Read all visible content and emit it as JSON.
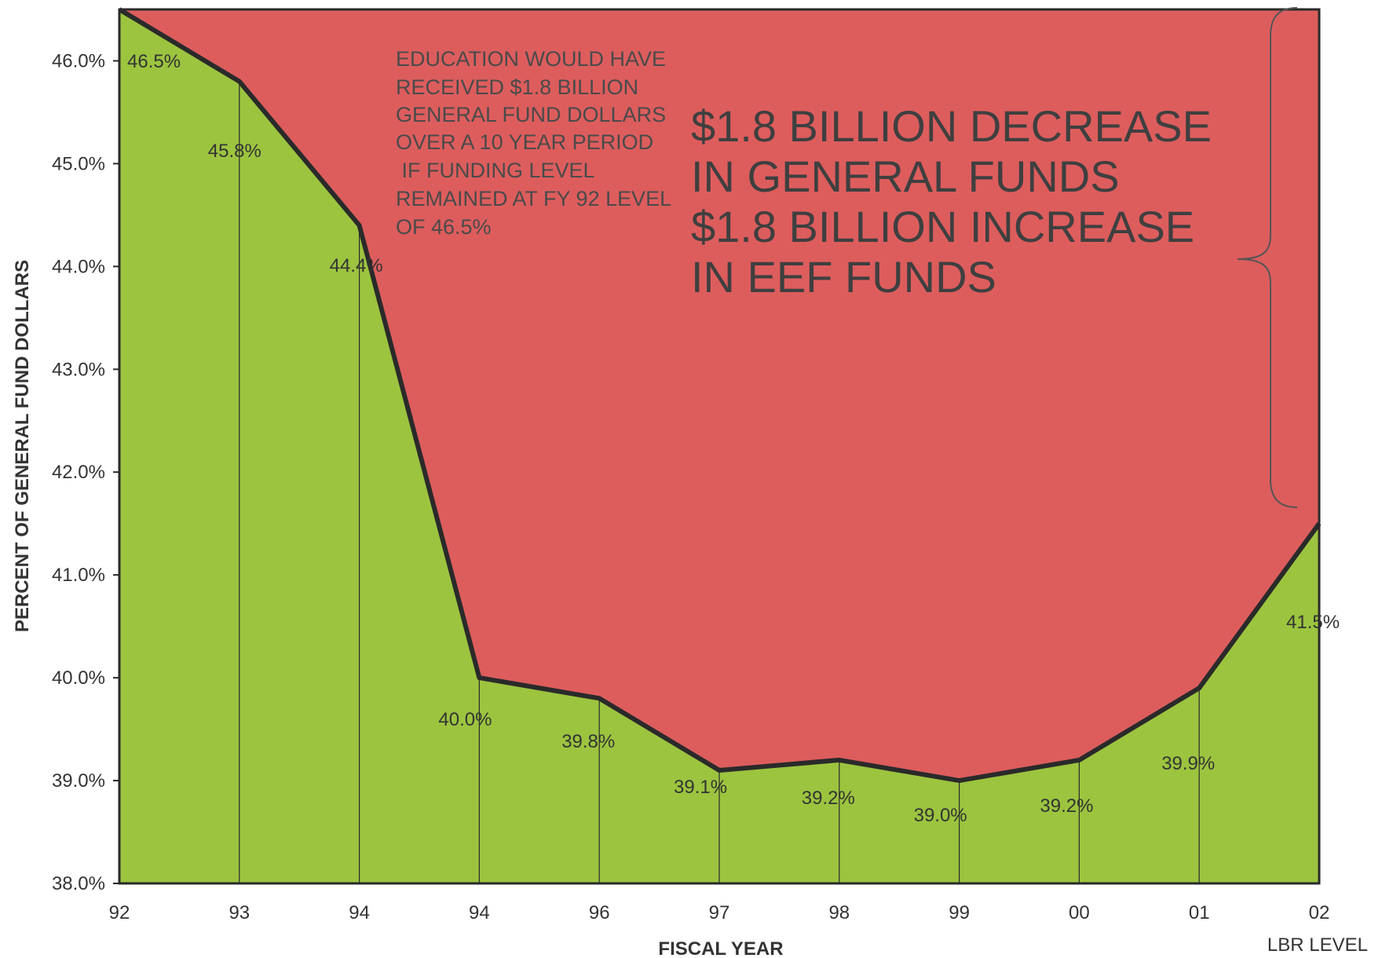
{
  "chart_data": {
    "type": "area",
    "categories": [
      "92",
      "93",
      "94",
      "94",
      "96",
      "97",
      "98",
      "99",
      "00",
      "01",
      "02"
    ],
    "values": [
      46.5,
      45.8,
      44.4,
      40.0,
      39.8,
      39.1,
      39.2,
      39.0,
      39.2,
      39.9,
      41.5
    ],
    "data_labels": [
      "46.5%",
      "45.8%",
      "44.4%",
      "40.0%",
      "39.8%",
      "39.1%",
      "39.2%",
      "39.0%",
      "39.2%",
      "39.9%",
      "41.5%"
    ],
    "y_ticks": [
      "38.0%",
      "39.0%",
      "40.0%",
      "41.0%",
      "42.0%",
      "43.0%",
      "44.0%",
      "45.0%",
      "46.0%"
    ],
    "ylim": [
      38.0,
      46.5
    ],
    "xlabel": "FISCAL YEAR",
    "ylabel": "PERCENT OF GENERAL FUND DOLLARS",
    "x_sublabel": "LBR LEVEL",
    "grid": false,
    "colors": {
      "area_fill": "#9cc43f",
      "above_fill": "#dd5d5d",
      "line": "#2a2a2a"
    },
    "annotation_small": [
      "EDUCATION WOULD HAVE",
      "RECEIVED $1.8 BILLION",
      "GENERAL FUND DOLLARS",
      "OVER A 10 YEAR PERIOD",
      " IF FUNDING LEVEL",
      "REMAINED AT FY 92 LEVEL",
      "OF 46.5%"
    ],
    "annotation_large": [
      "$1.8 BILLION DECREASE",
      "IN GENERAL FUNDS",
      "$1.8 BILLION INCREASE",
      "IN EEF FUNDS"
    ]
  }
}
